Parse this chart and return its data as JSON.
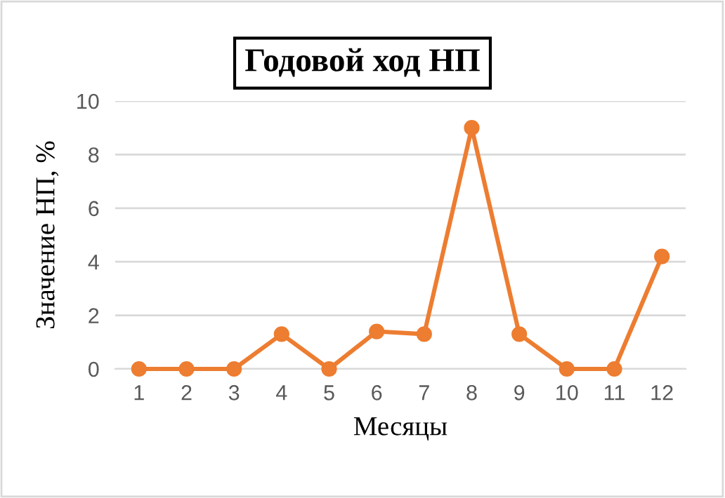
{
  "chart_data": {
    "type": "line",
    "title": "Годовой ход НП",
    "xlabel": "Месяцы",
    "ylabel": "Значение НП, %",
    "categories": [
      "1",
      "2",
      "3",
      "4",
      "5",
      "6",
      "7",
      "8",
      "9",
      "10",
      "11",
      "12"
    ],
    "series": [
      {
        "color": "#ed7d31",
        "values": [
          0,
          0,
          0,
          1.3,
          0,
          1.4,
          1.3,
          9.0,
          1.3,
          0,
          0,
          4.2
        ]
      }
    ],
    "ylim": [
      0,
      10
    ],
    "yticks": [
      0,
      2,
      4,
      6,
      8,
      10
    ],
    "grid": "y",
    "marker": "circle",
    "line_style": "solid",
    "legend": false
  }
}
